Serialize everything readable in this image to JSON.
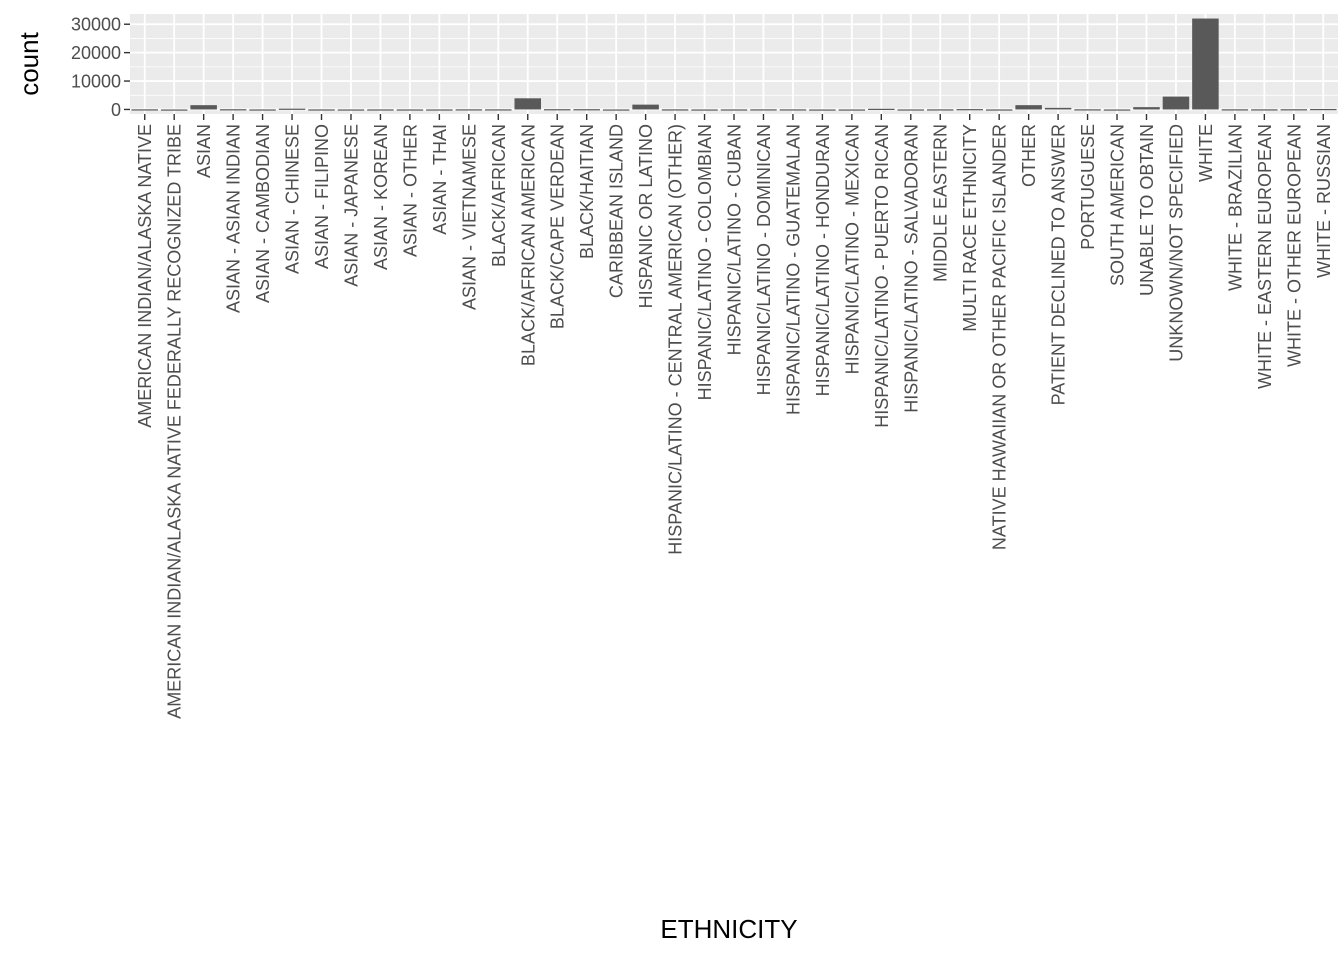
{
  "chart_data": {
    "type": "bar",
    "title": "",
    "xlabel": "ETHNICITY",
    "ylabel": "count",
    "ylim": [
      -1600,
      33600
    ],
    "yticks": [
      0,
      10000,
      20000,
      30000
    ],
    "ytick_labels": [
      "0",
      "10000",
      "20000",
      "30000"
    ],
    "grid": true,
    "legend": "none",
    "colors": {
      "panel": "#ebebeb",
      "grid": "#ffffff",
      "bar": "#595959",
      "tick": "#333333",
      "tick_label": "#4d4d4d"
    },
    "categories": [
      "AMERICAN INDIAN/ALASKA NATIVE",
      "AMERICAN INDIAN/ALASKA NATIVE FEDERALLY RECOGNIZED TRIBE",
      "ASIAN",
      "ASIAN - ASIAN INDIAN",
      "ASIAN - CAMBODIAN",
      "ASIAN - CHINESE",
      "ASIAN - FILIPINO",
      "ASIAN - JAPANESE",
      "ASIAN - KOREAN",
      "ASIAN - OTHER",
      "ASIAN - THAI",
      "ASIAN - VIETNAMESE",
      "BLACK/AFRICAN",
      "BLACK/AFRICAN AMERICAN",
      "BLACK/CAPE VERDEAN",
      "BLACK/HAITIAN",
      "CARIBBEAN ISLAND",
      "HISPANIC OR LATINO",
      "HISPANIC/LATINO - CENTRAL AMERICAN (OTHER)",
      "HISPANIC/LATINO - COLOMBIAN",
      "HISPANIC/LATINO - CUBAN",
      "HISPANIC/LATINO - DOMINICAN",
      "HISPANIC/LATINO - GUATEMALAN",
      "HISPANIC/LATINO - HONDURAN",
      "HISPANIC/LATINO - MEXICAN",
      "HISPANIC/LATINO - PUERTO RICAN",
      "HISPANIC/LATINO - SALVADORAN",
      "MIDDLE EASTERN",
      "MULTI RACE ETHNICITY",
      "NATIVE HAWAIIAN OR OTHER PACIFIC ISLANDER",
      "OTHER",
      "PATIENT DECLINED TO ANSWER",
      "PORTUGUESE",
      "SOUTH AMERICAN",
      "UNABLE TO OBTAIN",
      "UNKNOWN/NOT SPECIFIED",
      "WHITE",
      "WHITE - BRAZILIAN",
      "WHITE - EASTERN EUROPEAN",
      "WHITE - OTHER EUROPEAN",
      "WHITE - RUSSIAN"
    ],
    "values": [
      51,
      3,
      1509,
      85,
      17,
      277,
      25,
      13,
      25,
      17,
      18,
      53,
      44,
      3921,
      101,
      101,
      9,
      1696,
      43,
      9,
      24,
      45,
      40,
      4,
      13,
      232,
      19,
      43,
      130,
      18,
      1512,
      559,
      61,
      8,
      814,
      4523,
      32000,
      59,
      52,
      81,
      164
    ]
  }
}
